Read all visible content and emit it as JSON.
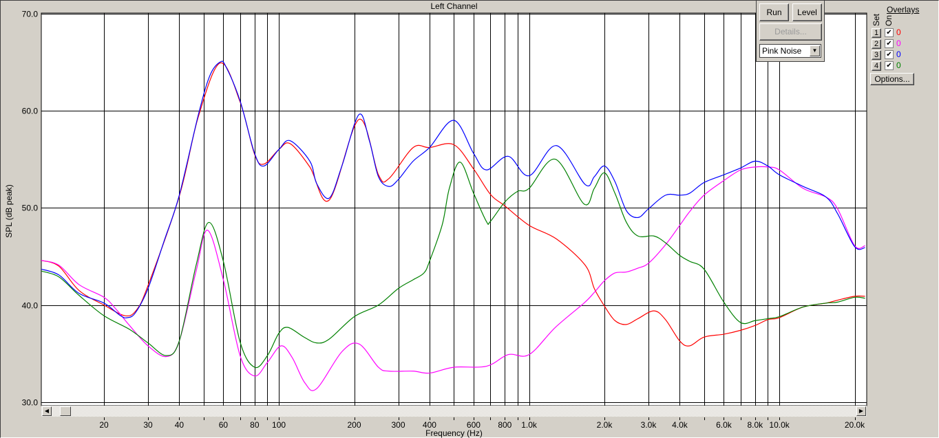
{
  "window": {
    "title": "Left Channel"
  },
  "controls": {
    "run_label": "Run",
    "level_label": "Level",
    "details_label": "Details...",
    "signal_select": "Pink Noise"
  },
  "overlays": {
    "title": "Overlays",
    "set_header": "Set",
    "on_header": "On",
    "rows": [
      {
        "set": "1",
        "on": true,
        "value": "0",
        "color": "#FF0000"
      },
      {
        "set": "2",
        "on": true,
        "value": "0",
        "color": "#FF00FF"
      },
      {
        "set": "3",
        "on": true,
        "value": "0",
        "color": "#0000FF"
      },
      {
        "set": "4",
        "on": true,
        "value": "0",
        "color": "#008000"
      }
    ],
    "options_label": "Options..."
  },
  "chart_data": {
    "type": "line",
    "title": "Left Channel",
    "xlabel": "Frequency (Hz)",
    "ylabel": "SPL (dB peak)",
    "xscale": "log",
    "xlim": [
      11.2,
      22000
    ],
    "ylim": [
      30,
      70
    ],
    "grid": true,
    "yticks": [
      "30.0",
      "40.0",
      "50.0",
      "60.0",
      "70.0"
    ],
    "xtick_labels": [
      {
        "f": 20,
        "label": "20"
      },
      {
        "f": 30,
        "label": "30"
      },
      {
        "f": 40,
        "label": "40"
      },
      {
        "f": 60,
        "label": "60"
      },
      {
        "f": 80,
        "label": "80"
      },
      {
        "f": 100,
        "label": "100"
      },
      {
        "f": 200,
        "label": "200"
      },
      {
        "f": 300,
        "label": "300"
      },
      {
        "f": 400,
        "label": "400"
      },
      {
        "f": 600,
        "label": "600"
      },
      {
        "f": 800,
        "label": "800"
      },
      {
        "f": 1000,
        "label": "1.0k"
      },
      {
        "f": 2000,
        "label": "2.0k"
      },
      {
        "f": 3000,
        "label": "3.0k"
      },
      {
        "f": 4000,
        "label": "4.0k"
      },
      {
        "f": 6000,
        "label": "6.0k"
      },
      {
        "f": 8000,
        "label": "8.0k"
      },
      {
        "f": 10000,
        "label": "10.0k"
      },
      {
        "f": 20000,
        "label": "20.0k"
      }
    ],
    "xgrid": [
      20,
      30,
      40,
      50,
      60,
      70,
      80,
      90,
      100,
      200,
      300,
      400,
      500,
      600,
      700,
      800,
      900,
      1000,
      2000,
      3000,
      4000,
      5000,
      6000,
      7000,
      8000,
      9000,
      10000,
      20000
    ],
    "series": [
      {
        "color": "#FF0000",
        "points": [
          [
            11.2,
            44.6
          ],
          [
            13.2,
            44.0
          ],
          [
            15.9,
            41.5
          ],
          [
            20,
            40.0
          ],
          [
            24.3,
            38.9
          ],
          [
            27,
            39.5
          ],
          [
            30,
            42.0
          ],
          [
            40,
            51.2
          ],
          [
            47.7,
            59.4
          ],
          [
            58.3,
            64.9
          ],
          [
            70,
            60.9
          ],
          [
            80,
            55.5
          ],
          [
            87.1,
            54.5
          ],
          [
            100,
            56.0
          ],
          [
            111,
            56.6
          ],
          [
            133,
            54.2
          ],
          [
            159,
            50.8
          ],
          [
            209,
            59.1
          ],
          [
            250,
            53.4
          ],
          [
            275,
            53.0
          ],
          [
            344,
            56.2
          ],
          [
            400,
            56.2
          ],
          [
            500,
            56.5
          ],
          [
            600,
            54.0
          ],
          [
            700,
            51.4
          ],
          [
            800,
            50.2
          ],
          [
            1000,
            48.2
          ],
          [
            1286,
            46.8
          ],
          [
            1675,
            44.1
          ],
          [
            1822,
            41.7
          ],
          [
            2000,
            39.9
          ],
          [
            2203,
            38.4
          ],
          [
            2449,
            38.0
          ],
          [
            2723,
            38.6
          ],
          [
            3155,
            39.4
          ],
          [
            3508,
            38.5
          ],
          [
            4000,
            36.3
          ],
          [
            4379,
            35.8
          ],
          [
            5000,
            36.7
          ],
          [
            6000,
            37.0
          ],
          [
            7000,
            37.4
          ],
          [
            8000,
            37.9
          ],
          [
            9000,
            38.5
          ],
          [
            10000,
            38.7
          ],
          [
            12455,
            39.8
          ],
          [
            15380,
            40.2
          ],
          [
            17090,
            40.5
          ],
          [
            20000,
            40.9
          ],
          [
            22000,
            40.9
          ]
        ]
      },
      {
        "color": "#FF00FF",
        "points": [
          [
            11.2,
            44.6
          ],
          [
            13.2,
            44.1
          ],
          [
            15.9,
            42.1
          ],
          [
            20,
            40.8
          ],
          [
            22.3,
            39.6
          ],
          [
            25.3,
            37.9
          ],
          [
            30,
            35.8
          ],
          [
            35.5,
            34.7
          ],
          [
            40,
            36.3
          ],
          [
            46.7,
            43.5
          ],
          [
            51.9,
            47.7
          ],
          [
            60,
            42.6
          ],
          [
            70,
            34.8
          ],
          [
            80,
            32.7
          ],
          [
            90,
            34.1
          ],
          [
            102,
            35.8
          ],
          [
            113,
            34.6
          ],
          [
            127,
            32.0
          ],
          [
            141.6,
            31.4
          ],
          [
            178.6,
            35.2
          ],
          [
            209,
            36.0
          ],
          [
            250,
            33.6
          ],
          [
            275,
            33.2
          ],
          [
            344,
            33.2
          ],
          [
            400,
            33.0
          ],
          [
            500,
            33.6
          ],
          [
            675,
            33.7
          ],
          [
            825,
            34.9
          ],
          [
            1000,
            34.9
          ],
          [
            1273,
            37.7
          ],
          [
            1657,
            40.2
          ],
          [
            1822,
            41.3
          ],
          [
            2000,
            42.5
          ],
          [
            2203,
            43.3
          ],
          [
            2449,
            43.4
          ],
          [
            2723,
            43.8
          ],
          [
            3000,
            44.3
          ],
          [
            3508,
            46.2
          ],
          [
            4000,
            48.2
          ],
          [
            4379,
            49.6
          ],
          [
            5000,
            51.3
          ],
          [
            6000,
            52.8
          ],
          [
            7000,
            53.9
          ],
          [
            8000,
            54.2
          ],
          [
            9000,
            54.2
          ],
          [
            10000,
            53.9
          ],
          [
            12455,
            52.0
          ],
          [
            15380,
            51.1
          ],
          [
            17090,
            49.9
          ],
          [
            20000,
            46.1
          ],
          [
            22000,
            46.1
          ]
        ]
      },
      {
        "color": "#0000FF",
        "points": [
          [
            11.2,
            43.7
          ],
          [
            13.2,
            43.1
          ],
          [
            15.9,
            41.2
          ],
          [
            20,
            40.2
          ],
          [
            23.3,
            38.9
          ],
          [
            24.8,
            38.7
          ],
          [
            26.7,
            39.2
          ],
          [
            30,
            41.7
          ],
          [
            34.8,
            46.6
          ],
          [
            40,
            51.3
          ],
          [
            47.7,
            59.6
          ],
          [
            53,
            63.6
          ],
          [
            58.3,
            65.0
          ],
          [
            61.5,
            64.5
          ],
          [
            70,
            61.0
          ],
          [
            80,
            55.6
          ],
          [
            87.1,
            54.3
          ],
          [
            100,
            56.0
          ],
          [
            111,
            56.9
          ],
          [
            133,
            54.8
          ],
          [
            141.6,
            52.5
          ],
          [
            159,
            51.0
          ],
          [
            178.6,
            54.3
          ],
          [
            209,
            59.6
          ],
          [
            230,
            56.9
          ],
          [
            250,
            53.2
          ],
          [
            275,
            52.2
          ],
          [
            300,
            52.9
          ],
          [
            344,
            54.8
          ],
          [
            400,
            56.2
          ],
          [
            500,
            59.0
          ],
          [
            600,
            55.6
          ],
          [
            675,
            53.9
          ],
          [
            825,
            55.3
          ],
          [
            1000,
            53.3
          ],
          [
            1286,
            56.4
          ],
          [
            1675,
            52.4
          ],
          [
            1822,
            53.2
          ],
          [
            2000,
            54.3
          ],
          [
            2203,
            52.7
          ],
          [
            2449,
            49.7
          ],
          [
            2723,
            49.0
          ],
          [
            3000,
            49.9
          ],
          [
            3508,
            51.3
          ],
          [
            4000,
            51.3
          ],
          [
            4379,
            51.5
          ],
          [
            5000,
            52.6
          ],
          [
            6000,
            53.4
          ],
          [
            7000,
            54.1
          ],
          [
            8000,
            54.8
          ],
          [
            9000,
            54.3
          ],
          [
            10000,
            53.4
          ],
          [
            12455,
            52.2
          ],
          [
            15380,
            51.1
          ],
          [
            17090,
            49.4
          ],
          [
            20000,
            46.0
          ],
          [
            22000,
            45.9
          ]
        ]
      },
      {
        "color": "#008000",
        "points": [
          [
            11.2,
            43.5
          ],
          [
            13.2,
            42.9
          ],
          [
            15.9,
            41.0
          ],
          [
            20,
            38.9
          ],
          [
            25.3,
            37.5
          ],
          [
            30,
            36.1
          ],
          [
            35.5,
            34.8
          ],
          [
            40,
            36.3
          ],
          [
            46.7,
            44.1
          ],
          [
            52.5,
            48.5
          ],
          [
            60,
            44.5
          ],
          [
            70,
            36.2
          ],
          [
            80,
            33.6
          ],
          [
            90,
            34.8
          ],
          [
            100,
            37.1
          ],
          [
            108.7,
            37.7
          ],
          [
            126,
            36.7
          ],
          [
            141.6,
            36.1
          ],
          [
            159,
            36.5
          ],
          [
            200,
            38.8
          ],
          [
            250,
            40.0
          ],
          [
            300,
            41.7
          ],
          [
            344,
            42.6
          ],
          [
            380,
            43.3
          ],
          [
            400,
            44.5
          ],
          [
            450,
            48.3
          ],
          [
            480,
            52.0
          ],
          [
            530,
            54.7
          ],
          [
            600,
            51.5
          ],
          [
            675,
            48.6
          ],
          [
            700,
            48.6
          ],
          [
            800,
            50.6
          ],
          [
            900,
            51.7
          ],
          [
            1000,
            52.0
          ],
          [
            1273,
            55.0
          ],
          [
            1657,
            50.4
          ],
          [
            1822,
            52.0
          ],
          [
            2000,
            53.6
          ],
          [
            2203,
            51.5
          ],
          [
            2449,
            48.5
          ],
          [
            2723,
            47.1
          ],
          [
            3155,
            47.1
          ],
          [
            3508,
            46.4
          ],
          [
            4000,
            45.1
          ],
          [
            4379,
            44.5
          ],
          [
            5000,
            43.7
          ],
          [
            6000,
            40.3
          ],
          [
            7000,
            38.2
          ],
          [
            8000,
            38.4
          ],
          [
            9000,
            38.6
          ],
          [
            10000,
            38.8
          ],
          [
            12455,
            39.8
          ],
          [
            15380,
            40.2
          ],
          [
            17090,
            40.3
          ],
          [
            20000,
            40.8
          ],
          [
            22000,
            40.7
          ]
        ]
      }
    ]
  }
}
